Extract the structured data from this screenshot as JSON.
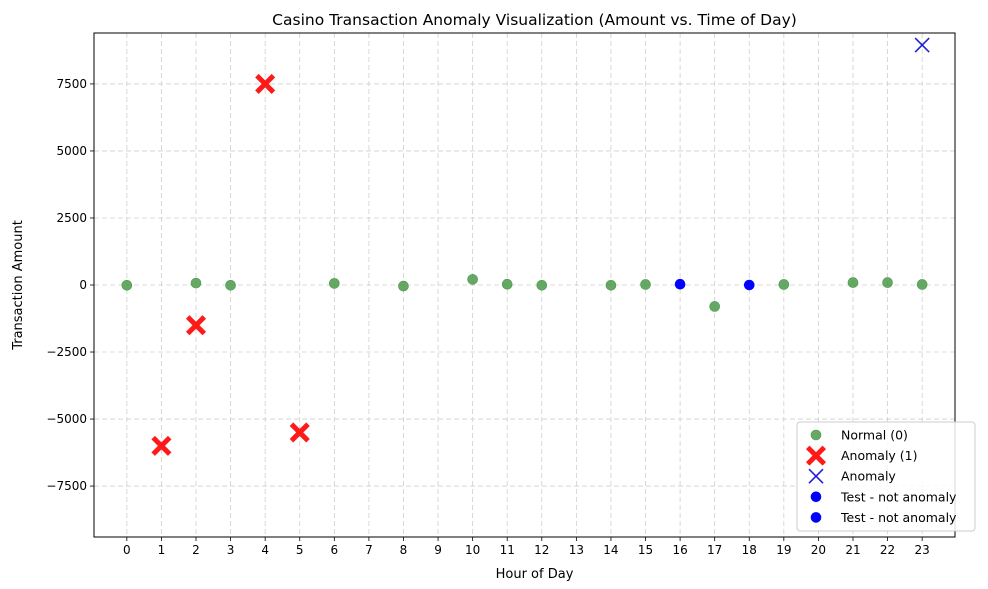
{
  "chart_data": {
    "type": "scatter",
    "title": "Casino Transaction Anomaly Visualization (Amount vs. Time of Day)",
    "xlabel": "Hour of Day",
    "ylabel": "Transaction Amount",
    "xlim": [
      -0.95,
      23.95
    ],
    "ylim": [
      -9400,
      9400
    ],
    "x_ticks": [
      0,
      1,
      2,
      3,
      4,
      5,
      6,
      7,
      8,
      9,
      10,
      11,
      12,
      13,
      14,
      15,
      16,
      17,
      18,
      19,
      20,
      21,
      22,
      23
    ],
    "y_ticks": [
      -7500,
      -5000,
      -2500,
      0,
      2500,
      5000,
      7500
    ],
    "y_tick_labels": [
      "−7500",
      "−5000",
      "−2500",
      "0",
      "2500",
      "5000",
      "7500"
    ],
    "grid": true,
    "legend_position": "lower-right",
    "series": [
      {
        "name": "Normal (0)",
        "marker": "circle",
        "color": "#4a9a4a",
        "points": [
          {
            "x": 0,
            "y": -10
          },
          {
            "x": 2,
            "y": 70
          },
          {
            "x": 3,
            "y": -10
          },
          {
            "x": 6,
            "y": 60
          },
          {
            "x": 8,
            "y": -40
          },
          {
            "x": 10,
            "y": 210
          },
          {
            "x": 11,
            "y": 30
          },
          {
            "x": 12,
            "y": -10
          },
          {
            "x": 14,
            "y": -10
          },
          {
            "x": 15,
            "y": 20
          },
          {
            "x": 17,
            "y": -800
          },
          {
            "x": 19,
            "y": 20
          },
          {
            "x": 21,
            "y": 90
          },
          {
            "x": 22,
            "y": 90
          },
          {
            "x": 23,
            "y": 20
          }
        ]
      },
      {
        "name": "Anomaly (1)",
        "marker": "filled-x",
        "color": "#ff1a1a",
        "points": [
          {
            "x": 1,
            "y": -6000
          },
          {
            "x": 2,
            "y": -1500
          },
          {
            "x": 4,
            "y": 7500
          },
          {
            "x": 5,
            "y": -5500
          }
        ]
      },
      {
        "name": "Anomaly",
        "marker": "x",
        "color": "#1f1fd6",
        "points": [
          {
            "x": 23,
            "y": 8950
          }
        ]
      },
      {
        "name": "Test - not anomaly",
        "marker": "circle",
        "color": "#0000ff",
        "points": [
          {
            "x": 16,
            "y": 30
          }
        ]
      },
      {
        "name": "Test - not anomaly",
        "marker": "circle",
        "color": "#0000ff",
        "points": [
          {
            "x": 18,
            "y": 0
          }
        ]
      }
    ]
  }
}
